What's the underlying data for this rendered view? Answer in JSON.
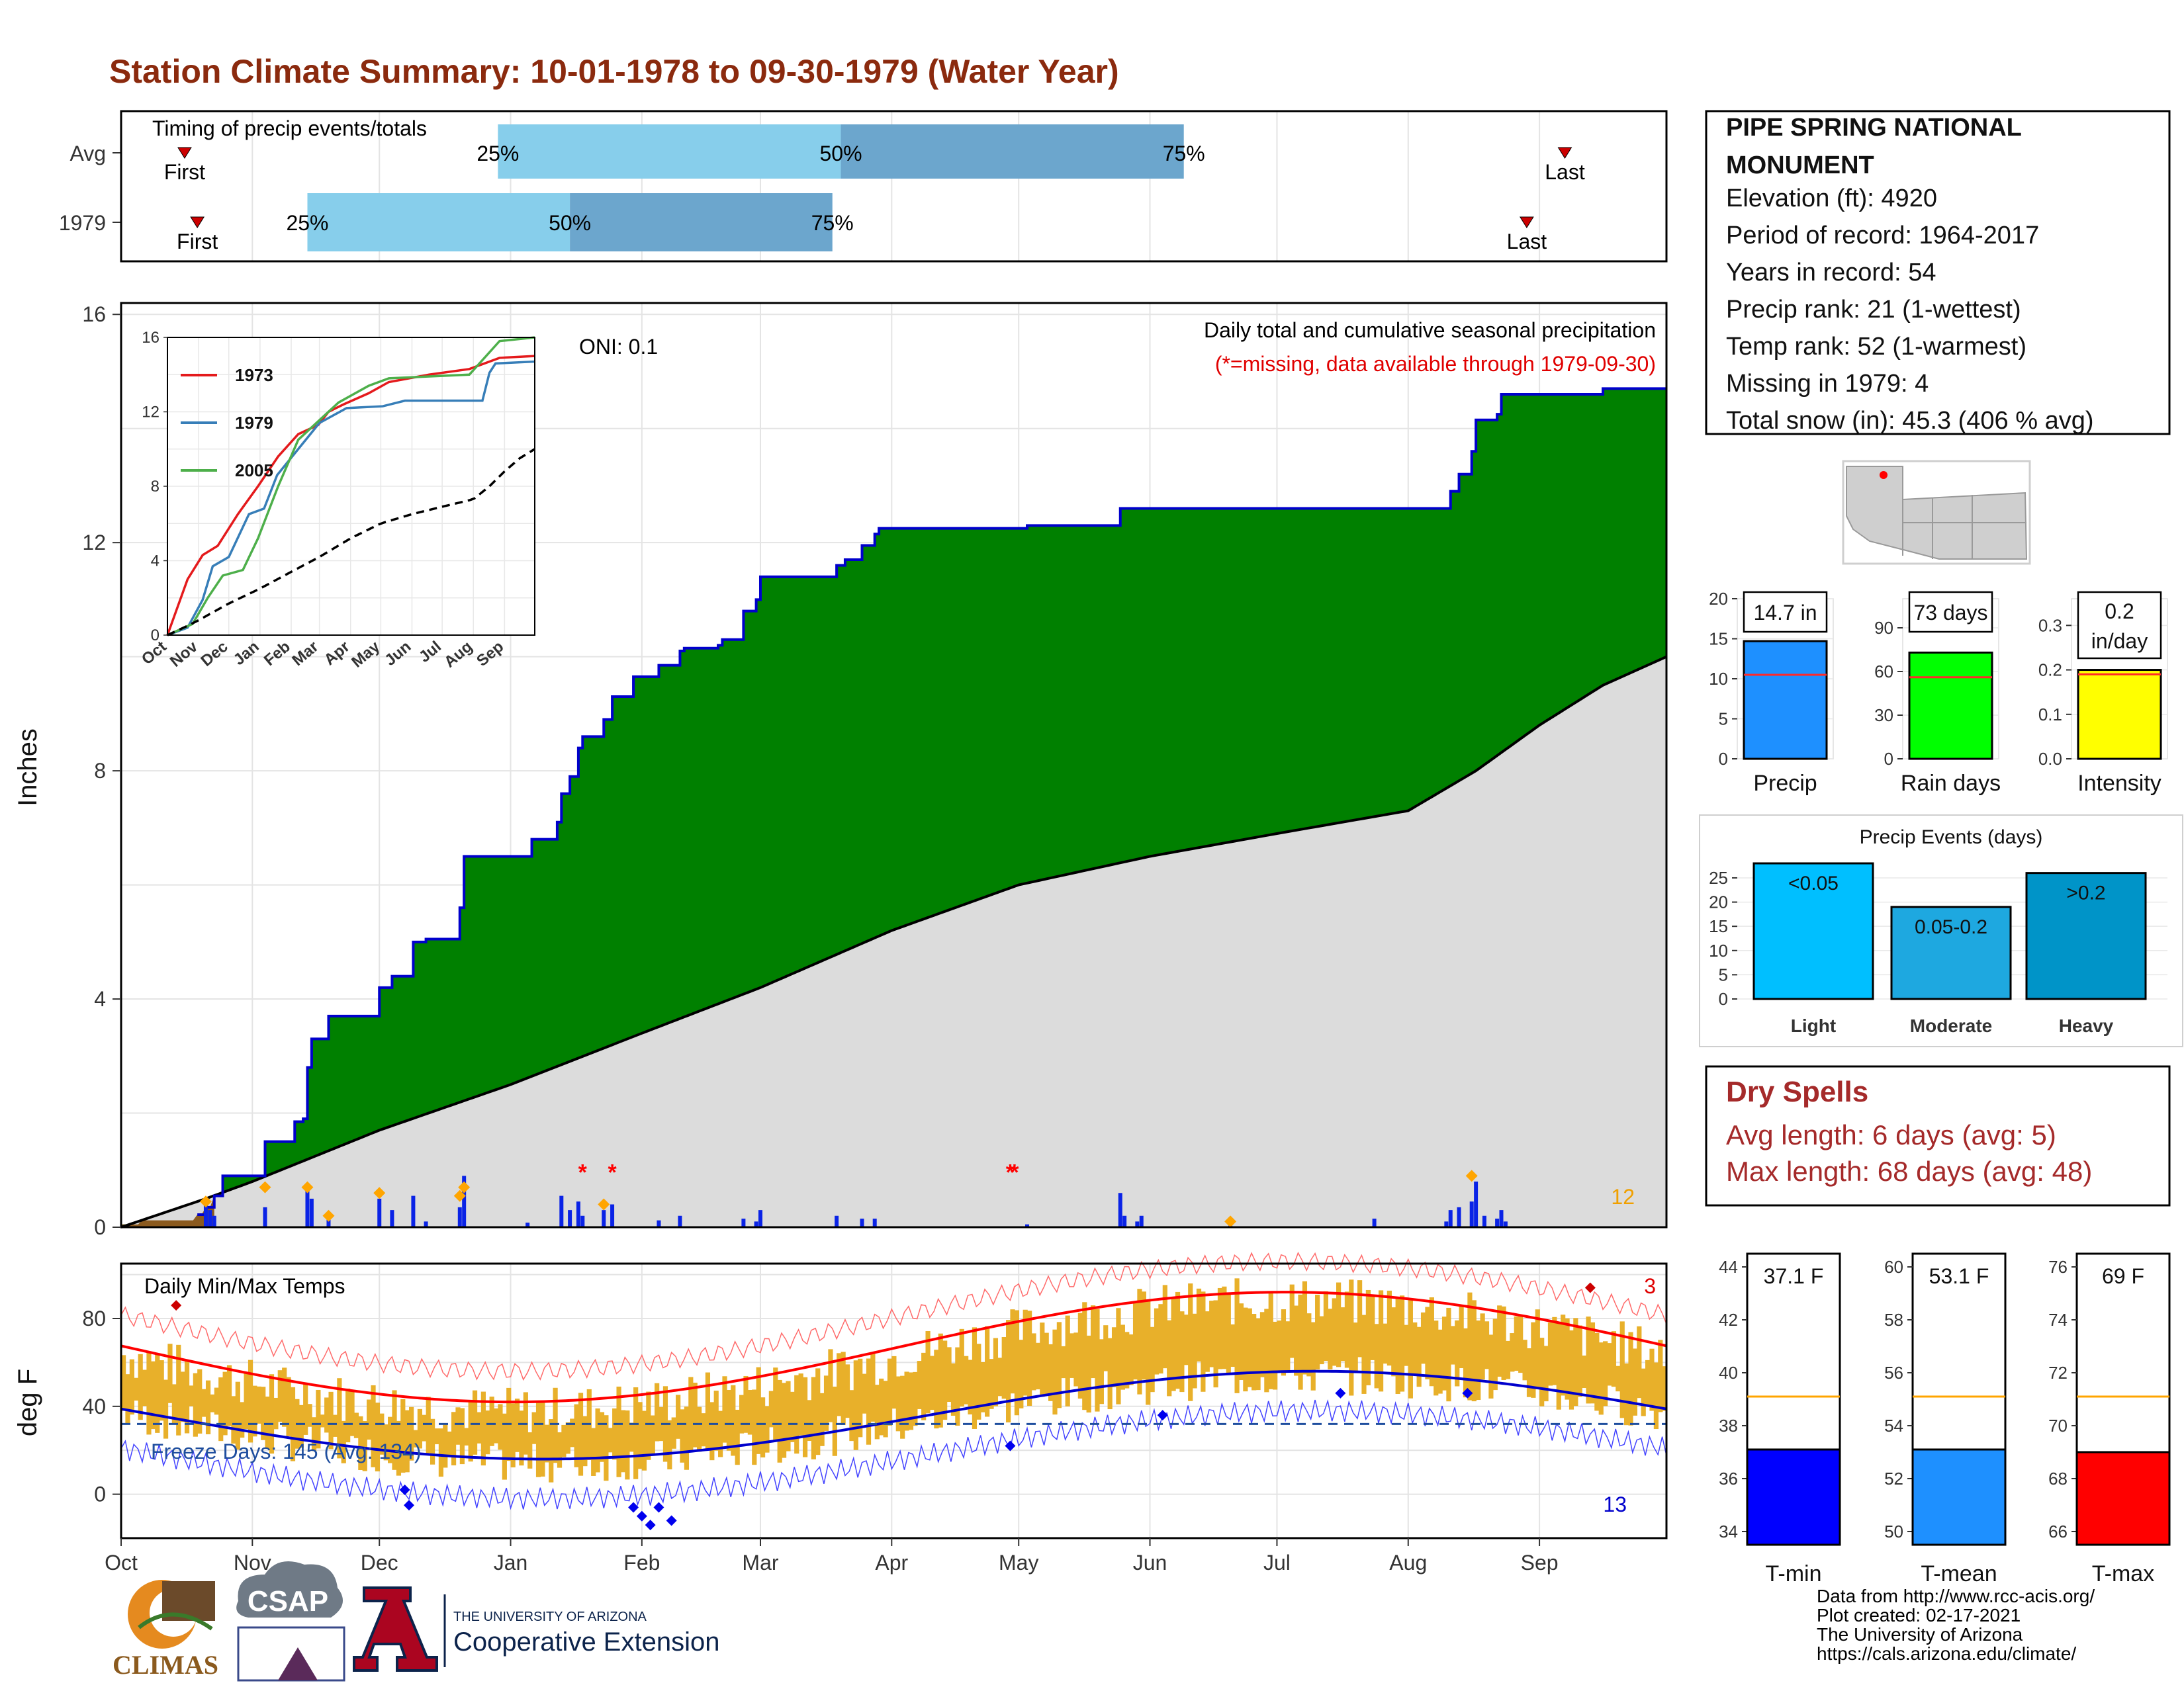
{
  "title": "Station Climate Summary: 10-01-1978 to 09-30-1979 (Water Year)",
  "timing": {
    "label": "Timing of precip events/totals",
    "rows": [
      {
        "name": "Avg",
        "first_day": 15,
        "p25": 89,
        "p50": 170,
        "p75": 251,
        "last_day": 341
      },
      {
        "name": "1979",
        "first_day": 18,
        "p25": 44,
        "p50": 106,
        "p75": 168,
        "last_day": 332
      }
    ],
    "first_label": "First",
    "last_label": "Last",
    "pct_labels": [
      "25%",
      "50%",
      "75%"
    ]
  },
  "months": [
    "Oct",
    "Nov",
    "Dec",
    "Jan",
    "Feb",
    "Mar",
    "Apr",
    "May",
    "Jun",
    "Jul",
    "Aug",
    "Sep"
  ],
  "precip": {
    "ylabel": "Inches",
    "yticks": [
      "0",
      "4",
      "8",
      "12",
      "16"
    ],
    "caption": "Daily total and cumulative seasonal precipitation",
    "missing_note": "(*=missing, data available through 1979-09-30)",
    "oni": "ONI: 0.1",
    "count_label": "12",
    "colors": {
      "above": "#008000",
      "line": "#0000cc",
      "avg": "#dcdcdc",
      "below": "#8b5a1e",
      "bars": "#0a23e6",
      "markers": "#ffa500"
    }
  },
  "inset": {
    "yticks": [
      "0",
      "4",
      "8",
      "12",
      "16"
    ],
    "xticks": [
      "Oct",
      "Nov",
      "Dec",
      "Jan",
      "Feb",
      "Mar",
      "Apr",
      "May",
      "Jun",
      "Jul",
      "Aug",
      "Sep"
    ],
    "legend": [
      {
        "name": "1973",
        "color": "#e41a1c"
      },
      {
        "name": "1979",
        "color": "#377eb8"
      },
      {
        "name": "2005",
        "color": "#4daf4a"
      }
    ]
  },
  "temps": {
    "label": "Daily Min/Max Temps",
    "ylabel": "deg F",
    "yticks": [
      "0",
      "40",
      "80"
    ],
    "freeze": "Freeze Days: 145 (Avg: 134)",
    "count_max": "3",
    "count_min": "13",
    "colors": {
      "bars": "#e8b02a",
      "max": "#ff0000",
      "min": "#0000cc",
      "freeze": "#1f4e9e"
    }
  },
  "station": {
    "name": "PIPE SPRING NATIONAL MONUMENT",
    "lines": [
      "Elevation (ft): 4920",
      "Period of record: 1964-2017",
      "Years in record: 54",
      "Precip rank: 21 (1-wettest)",
      "Temp rank: 52 (1-warmest)",
      "Missing in 1979: 4",
      "Total snow (in): 45.3 (406 % avg)"
    ]
  },
  "stats": [
    {
      "label": "Precip",
      "value_label": "14.7 in",
      "value": 14.7,
      "avg": 10.5,
      "yticks": [
        "0",
        "5",
        "10",
        "15",
        "20"
      ],
      "ymax": 20,
      "color": "#1e90ff"
    },
    {
      "label": "Rain days",
      "value_label": "73 days",
      "value": 73,
      "avg": 56,
      "yticks": [
        "0",
        "30",
        "60",
        "90"
      ],
      "ymax": 110,
      "color": "#00ff00"
    },
    {
      "label": "Intensity",
      "value_label": "0.2 in/day",
      "value_label_1": "0.2",
      "value_label_2": "in/day",
      "value": 0.2,
      "avg": 0.19,
      "yticks": [
        "0.0",
        "0.1",
        "0.2",
        "0.3"
      ],
      "ymax": 0.36,
      "color": "#ffff00"
    }
  ],
  "events": {
    "title": "Precip Events (days)",
    "yticks": [
      "0",
      "5",
      "10",
      "15",
      "20",
      "25"
    ],
    "ymax": 28,
    "bars": [
      {
        "category": "Light",
        "label": "<0.05",
        "value": 28,
        "color": "#00bfff"
      },
      {
        "category": "Moderate",
        "label": "0.05-0.2",
        "value": 19,
        "color": "#1ea8e0"
      },
      {
        "category": "Heavy",
        "label": ">0.2",
        "value": 26,
        "color": "#0094c8"
      }
    ]
  },
  "dry_spells": {
    "title": "Dry Spells",
    "avg": "Avg length: 6 days (avg: 5)",
    "max": "Max length: 68 days (avg: 48)"
  },
  "temp_stats": [
    {
      "label": "T-min",
      "value_label": "37.1 F",
      "value": 37.1,
      "avg": 39.1,
      "ymin": 33.5,
      "ymax": 44.5,
      "yticks": [
        "34",
        "36",
        "38",
        "40",
        "42",
        "44"
      ],
      "color": "#0000ff"
    },
    {
      "label": "T-mean",
      "value_label": "53.1 F",
      "value": 53.1,
      "avg": 55.1,
      "ymin": 49.5,
      "ymax": 60.5,
      "yticks": [
        "50",
        "52",
        "54",
        "56",
        "58",
        "60"
      ],
      "color": "#1e90ff"
    },
    {
      "label": "T-max",
      "value_label": "69 F",
      "value": 69,
      "avg": 71.1,
      "ymin": 65.5,
      "ymax": 76.5,
      "yticks": [
        "66",
        "68",
        "70",
        "72",
        "74",
        "76"
      ],
      "color": "#ff0000"
    }
  ],
  "footer": [
    "Data from http://www.rcc-acis.org/",
    "Plot created: 02-17-2021",
    "The University of Arizona",
    "https://cals.arizona.edu/climate/"
  ],
  "logos": {
    "climas": "CLIMAS",
    "csap": "CSAP",
    "ua_small": "THE UNIVERSITY OF ARIZONA",
    "ua_big": "Cooperative Extension",
    "ua_letter": "A"
  }
}
